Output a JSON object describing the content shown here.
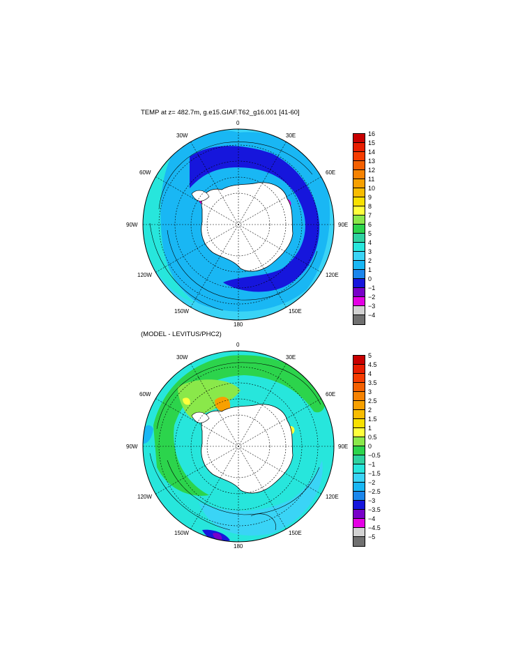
{
  "panels": [
    {
      "title": "TEMP at z= 482.7m, g.e15.GIAF.T62_g16.001 [41-60]",
      "lon_labels": [
        "0",
        "30E",
        "60E",
        "90E",
        "120E",
        "150E",
        "180",
        "150W",
        "120W",
        "90W",
        "60W",
        "30W"
      ],
      "colorbar": {
        "ticks": [
          "16",
          "15",
          "14",
          "13",
          "12",
          "11",
          "10",
          "9",
          "8",
          "7",
          "6",
          "5",
          "4",
          "3",
          "2",
          "1",
          "0",
          "−1",
          "−2",
          "−3",
          "−4"
        ],
        "colors": [
          "#c80000",
          "#e81e00",
          "#f63c00",
          "#f46000",
          "#f68200",
          "#f7a000",
          "#f8bc00",
          "#f8e000",
          "#ffff3c",
          "#8ae84a",
          "#2cd44c",
          "#2ed2a0",
          "#27e6dc",
          "#3ad4f6",
          "#19b7f4",
          "#1b86ec",
          "#1616dc",
          "#7800c8",
          "#e400e4",
          "#d2d2d2",
          "#707070"
        ]
      },
      "field_summary": "Ocean temperature at 482.7m depth around Antarctica; mostly 2 to 4 degrees, colder 0 to 1 degree band adjacent to the continent."
    },
    {
      "title": "(MODEL - LEVITUS/PHC2)",
      "lon_labels": [
        "0",
        "30E",
        "60E",
        "90E",
        "120E",
        "150E",
        "180",
        "150W",
        "120W",
        "90W",
        "60W",
        "30W"
      ],
      "colorbar": {
        "ticks": [
          "5",
          "4.5",
          "4",
          "3.5",
          "3",
          "2.5",
          "2",
          "1.5",
          "1",
          "0.5",
          "0",
          "−0.5",
          "−1",
          "−1.5",
          "−2",
          "−2.5",
          "−3",
          "−3.5",
          "−4",
          "−4.5",
          "−5"
        ],
        "colors": [
          "#c80000",
          "#e81e00",
          "#f63c00",
          "#f46000",
          "#f68200",
          "#f7a000",
          "#f8bc00",
          "#f8e000",
          "#ffff3c",
          "#8ae84a",
          "#2cd44c",
          "#2ed2a0",
          "#27e6dc",
          "#3ad4f6",
          "#19b7f4",
          "#1b86ec",
          "#1616dc",
          "#7800c8",
          "#e400e4",
          "#d2d2d2",
          "#707070"
        ]
      },
      "field_summary": "Model minus observed temperature difference; mostly -1 to 0.5, positive anomalies near the Weddell Sea."
    }
  ]
}
